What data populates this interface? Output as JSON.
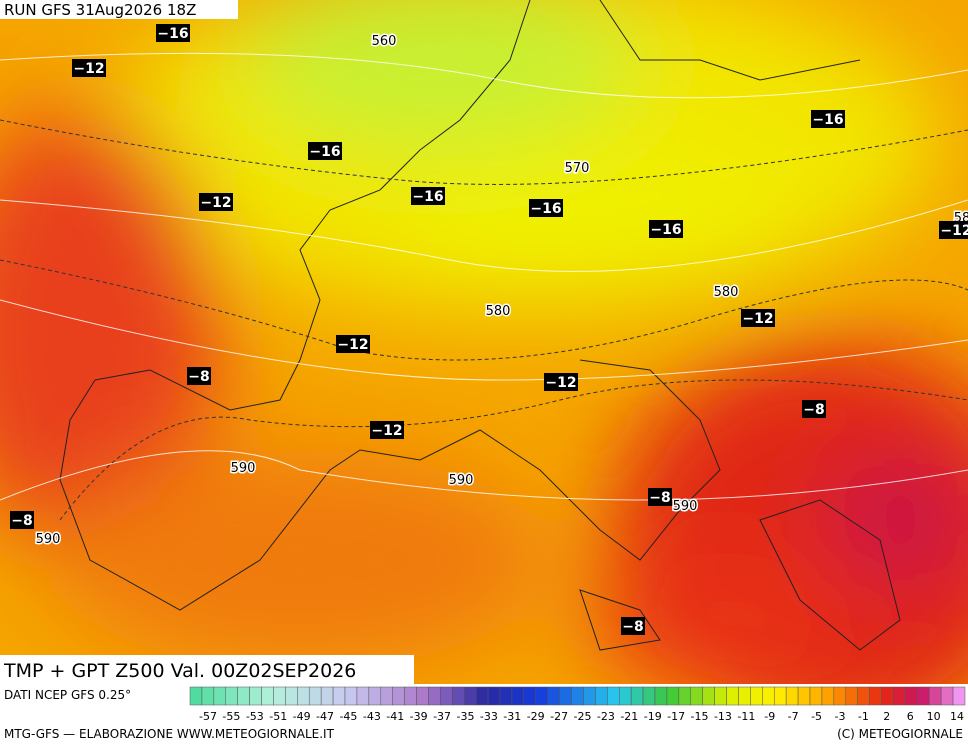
{
  "header": {
    "run": "RUN GFS 31Aug2026 18Z"
  },
  "map": {
    "labels": [
      {
        "text": "−16",
        "kind": "temp"
      },
      {
        "text": "560",
        "kind": "gpt"
      },
      {
        "text": "−12",
        "kind": "temp"
      },
      {
        "text": "−16",
        "kind": "temp"
      },
      {
        "text": "−16",
        "kind": "temp"
      },
      {
        "text": "570",
        "kind": "gpt"
      },
      {
        "text": "−12",
        "kind": "temp"
      },
      {
        "text": "−16",
        "kind": "temp"
      },
      {
        "text": "−16",
        "kind": "temp"
      },
      {
        "text": "−16",
        "kind": "temp"
      },
      {
        "text": "58",
        "kind": "gpt"
      },
      {
        "text": "−12",
        "kind": "temp"
      },
      {
        "text": "580",
        "kind": "gpt"
      },
      {
        "text": "−12",
        "kind": "temp"
      },
      {
        "text": "580",
        "kind": "gpt"
      },
      {
        "text": "−12",
        "kind": "temp"
      },
      {
        "text": "−8",
        "kind": "temp"
      },
      {
        "text": "−12",
        "kind": "temp"
      },
      {
        "text": "−8",
        "kind": "temp"
      },
      {
        "text": "−12",
        "kind": "temp"
      },
      {
        "text": "590",
        "kind": "gpt"
      },
      {
        "text": "590",
        "kind": "gpt"
      },
      {
        "text": "−8",
        "kind": "temp"
      },
      {
        "text": "590",
        "kind": "gpt"
      },
      {
        "text": "−8",
        "kind": "temp"
      },
      {
        "text": "590",
        "kind": "gpt"
      },
      {
        "text": "−8",
        "kind": "temp"
      }
    ],
    "title": "TMP + GPT Z500 Val. 00Z02SEP2026"
  },
  "legend": {
    "source": "DATI NCEP GFS 0.25°",
    "scale": [
      -57,
      -55,
      -53,
      -51,
      -49,
      -47,
      -45,
      -43,
      -41,
      -39,
      -37,
      -35,
      -33,
      -31,
      -29,
      -27,
      -25,
      -23,
      -21,
      -19,
      -17,
      -15,
      -13,
      -11,
      -9,
      -7,
      -5,
      -3,
      -1,
      2,
      6,
      10,
      14
    ]
  },
  "footer": {
    "left": "MTG-GFS — ELABORAZIONE WWW.METEOGIORNALE.IT",
    "right": "(C) METEOGIORNALE"
  }
}
